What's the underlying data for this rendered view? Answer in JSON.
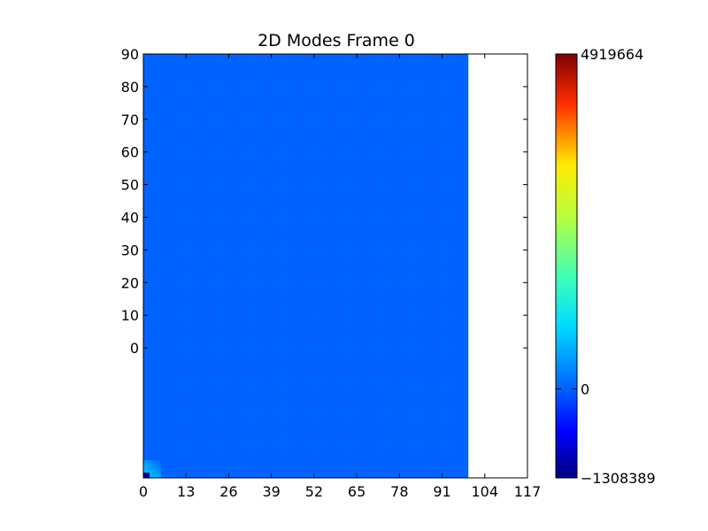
{
  "chart_data": {
    "type": "heatmap",
    "title": "2D Modes Frame 0",
    "xlabel": "",
    "ylabel": "",
    "x_ticks": [
      0,
      13,
      26,
      39,
      52,
      65,
      78,
      91,
      104,
      117
    ],
    "xlim": [
      0,
      117
    ],
    "y_tick_labels": [
      "90",
      "80",
      "70",
      "60",
      "50",
      "40",
      "30",
      "20",
      "10",
      "0"
    ],
    "data_extent_x": [
      0,
      99
    ],
    "dominant_value": 0,
    "corner_feature": {
      "location": "bottom-left",
      "colors": [
        "#00e5ff",
        "#000080"
      ]
    },
    "grid": false,
    "colorbar": {
      "colormap": "jet",
      "min": -1308389,
      "max": 4919664,
      "tick_values": [
        4919664,
        0,
        -1308389
      ],
      "tick_labels": [
        "4919664",
        "0",
        "−1308389"
      ]
    },
    "colors": {
      "field": "#0062ff",
      "axis": "#000000",
      "background": "#ffffff"
    }
  }
}
